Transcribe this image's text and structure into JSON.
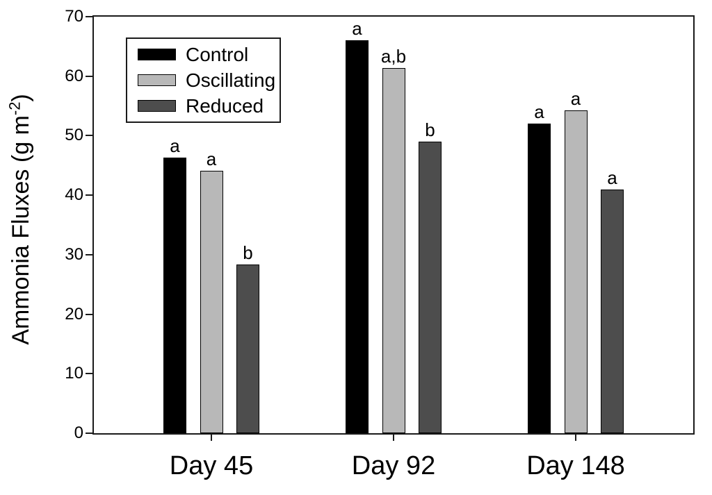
{
  "chart_data": {
    "type": "bar",
    "title": "",
    "xlabel": "",
    "ylabel": "Ammonia Fluxes (g m⁻²)",
    "ylabel_parts": {
      "pre": "Ammonia Fluxes (g m",
      "sup": "-2",
      "post": ")"
    },
    "categories": [
      "Day 45",
      "Day 92",
      "Day 148"
    ],
    "ylim": [
      0,
      70
    ],
    "yticks": [
      0,
      10,
      20,
      30,
      40,
      50,
      60,
      70
    ],
    "grid": false,
    "legend_position": "upper-left-inside",
    "axis_color": "#1a1a1a",
    "background_color": "#ffffff",
    "series": [
      {
        "name": "Control",
        "color": "#000000",
        "values": [
          46.3,
          66.0,
          52.0
        ],
        "sig_letters": [
          "a",
          "a",
          "a"
        ]
      },
      {
        "name": "Oscillating",
        "color": "#b8b8b8",
        "values": [
          44.1,
          61.4,
          54.2
        ],
        "sig_letters": [
          "a",
          "a,b",
          "a"
        ]
      },
      {
        "name": "Reduced",
        "color": "#4d4d4d",
        "values": [
          28.4,
          49.0,
          41.0
        ],
        "sig_letters": [
          "b",
          "b",
          "a"
        ]
      }
    ]
  }
}
